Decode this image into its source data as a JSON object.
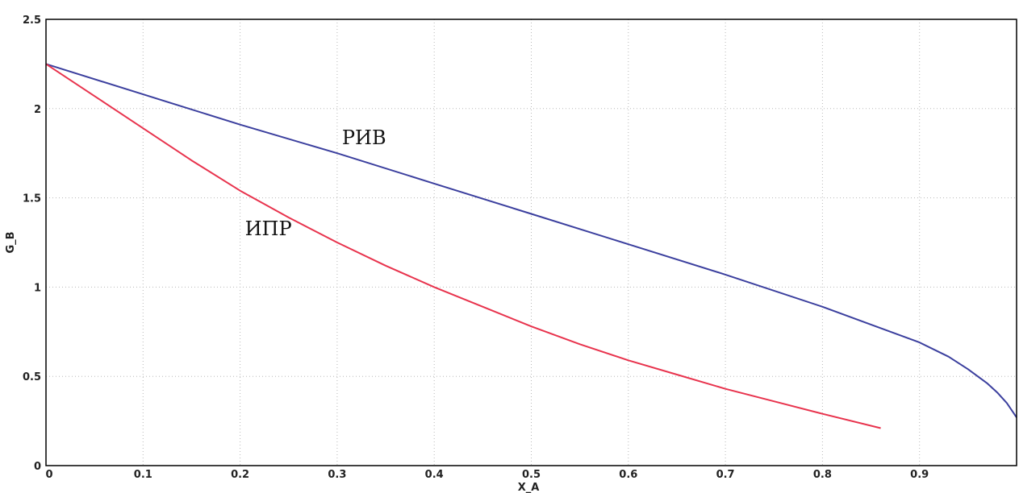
{
  "chart_data": {
    "type": "line",
    "xlabel": "X_A",
    "ylabel": "G_B",
    "xlim": [
      0,
      1
    ],
    "ylim": [
      0,
      2.5
    ],
    "x_ticks": [
      "0",
      "0.1",
      "0.2",
      "0.3",
      "0.4",
      "0.5",
      "0.6",
      "0.7",
      "0.8",
      "0.9"
    ],
    "y_ticks": [
      "0",
      "0.5",
      "1",
      "1.5",
      "2",
      "2.5"
    ],
    "x_tick_values": [
      0,
      0.1,
      0.2,
      0.3,
      0.4,
      0.5,
      0.6,
      0.7,
      0.8,
      0.9
    ],
    "y_tick_values": [
      0,
      0.5,
      1,
      1.5,
      2,
      2.5
    ],
    "grid": true,
    "series": [
      {
        "name": "РИВ",
        "color": "#3b3f9e",
        "x": [
          0,
          0.1,
          0.2,
          0.3,
          0.4,
          0.5,
          0.6,
          0.7,
          0.8,
          0.85,
          0.9,
          0.93,
          0.95,
          0.97,
          0.98,
          0.99,
          1.0
        ],
        "y": [
          2.25,
          2.08,
          1.91,
          1.75,
          1.58,
          1.41,
          1.24,
          1.07,
          0.89,
          0.79,
          0.69,
          0.61,
          0.54,
          0.46,
          0.41,
          0.35,
          0.27
        ]
      },
      {
        "name": "ИПР",
        "color": "#e8334d",
        "x": [
          0,
          0.05,
          0.1,
          0.15,
          0.2,
          0.25,
          0.3,
          0.35,
          0.4,
          0.45,
          0.5,
          0.55,
          0.6,
          0.65,
          0.7,
          0.75,
          0.8,
          0.86
        ],
        "y": [
          2.25,
          2.07,
          1.89,
          1.71,
          1.54,
          1.39,
          1.25,
          1.12,
          1.0,
          0.89,
          0.78,
          0.68,
          0.59,
          0.51,
          0.43,
          0.36,
          0.29,
          0.21
        ]
      }
    ],
    "annotations": [
      {
        "text": "РИВ",
        "x": 0.305,
        "y": 1.8
      },
      {
        "text": "ИПР",
        "x": 0.205,
        "y": 1.29
      }
    ]
  }
}
